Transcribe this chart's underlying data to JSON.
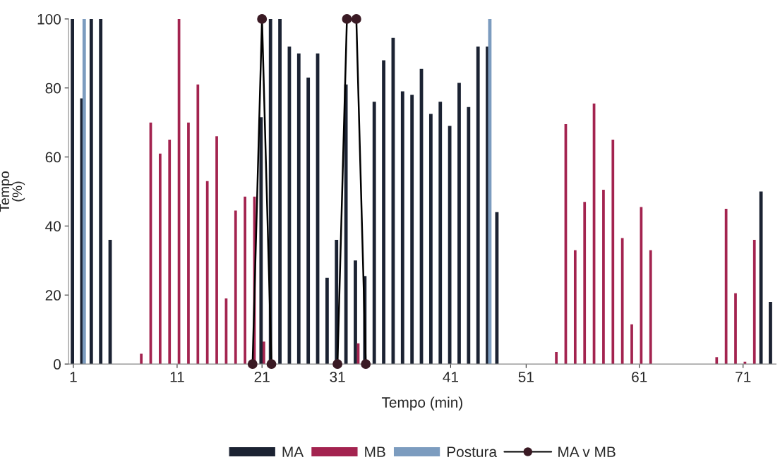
{
  "chart_data": {
    "type": "bar",
    "xlabel": "Tempo (min)",
    "ylabel": "Tempo\n(%)",
    "categories": [
      "1",
      null,
      null,
      null,
      null,
      null,
      null,
      null,
      null,
      null,
      null,
      "11",
      null,
      null,
      null,
      null,
      null,
      null,
      null,
      null,
      "21",
      null,
      null,
      null,
      null,
      null,
      null,
      null,
      "31",
      null,
      null,
      null,
      null,
      null,
      null,
      null,
      null,
      null,
      null,
      null,
      "41",
      null,
      null,
      null,
      null,
      null,
      null,
      null,
      "51",
      null,
      null,
      null,
      null,
      null,
      null,
      null,
      null,
      null,
      null,
      null,
      "61",
      null,
      null,
      null,
      null,
      null,
      null,
      null,
      null,
      null,
      null,
      "71",
      null,
      null,
      null
    ],
    "ylim": [
      0,
      100
    ],
    "yticks": [
      0,
      20,
      40,
      60,
      80,
      100
    ],
    "grid": false,
    "legend": "bottom",
    "series": [
      {
        "name": "MA",
        "color": "#1b2232",
        "values": [
          100,
          77,
          100,
          100,
          36,
          null,
          null,
          null,
          null,
          null,
          null,
          null,
          null,
          null,
          null,
          null,
          null,
          null,
          null,
          null,
          71.5,
          100,
          100,
          92,
          90,
          83,
          90,
          25,
          36,
          81,
          30,
          25.5,
          76,
          88,
          94.5,
          79,
          78,
          85.5,
          72.5,
          76,
          69,
          81.5,
          74.5,
          92,
          92,
          44,
          null,
          null,
          null,
          null,
          null,
          null,
          null,
          null,
          null,
          null,
          null,
          null,
          null,
          null,
          null,
          null,
          null,
          null,
          null,
          null,
          null,
          null,
          null,
          null,
          null,
          null,
          null,
          50,
          18
        ]
      },
      {
        "name": "MB",
        "color": "#a3234f",
        "values": [
          null,
          null,
          null,
          null,
          null,
          null,
          null,
          3,
          70,
          61,
          65,
          100,
          70,
          81,
          53,
          66,
          19,
          44.5,
          48.5,
          48.5,
          6.5,
          null,
          null,
          null,
          null,
          null,
          null,
          null,
          null,
          null,
          6,
          null,
          null,
          null,
          null,
          null,
          null,
          null,
          null,
          null,
          null,
          null,
          null,
          null,
          null,
          null,
          null,
          null,
          null,
          null,
          null,
          3.5,
          69.5,
          33,
          47,
          75.5,
          50.5,
          65,
          36.5,
          11.5,
          45.5,
          33,
          null,
          null,
          null,
          null,
          null,
          null,
          2,
          45,
          20.5,
          0.7,
          36,
          null,
          null
        ]
      },
      {
        "name": "Postura",
        "color": "#7c9cbf",
        "values": [
          null,
          100,
          null,
          null,
          null,
          null,
          null,
          null,
          null,
          null,
          null,
          null,
          null,
          null,
          null,
          null,
          null,
          null,
          null,
          null,
          null,
          null,
          null,
          null,
          null,
          null,
          null,
          null,
          null,
          null,
          null,
          null,
          null,
          null,
          null,
          null,
          null,
          null,
          null,
          null,
          null,
          null,
          null,
          null,
          100,
          null,
          null,
          null,
          null,
          null,
          null,
          null,
          null,
          null,
          null,
          null,
          null,
          null,
          null,
          null,
          null,
          null,
          null,
          null,
          null,
          null,
          null,
          null,
          null,
          null,
          null,
          null,
          null,
          null,
          null
        ]
      },
      {
        "name": "MA v MB",
        "type": "line",
        "color": "#3a1a24",
        "marker": "circle",
        "line_style": "solid",
        "values": [
          null,
          null,
          null,
          null,
          null,
          null,
          null,
          null,
          null,
          null,
          null,
          null,
          null,
          null,
          null,
          null,
          null,
          null,
          null,
          0,
          100,
          0,
          null,
          null,
          null,
          null,
          null,
          null,
          0,
          100,
          100,
          0,
          null,
          null,
          null,
          null,
          null,
          null,
          null,
          null,
          null,
          null,
          null,
          null,
          null,
          null,
          null,
          null,
          null,
          null,
          null,
          null,
          null,
          null,
          null,
          null,
          null,
          null,
          null,
          null,
          null,
          null,
          null,
          null,
          null,
          null,
          null,
          null,
          null,
          null,
          null,
          null,
          null,
          null,
          null
        ]
      }
    ]
  }
}
